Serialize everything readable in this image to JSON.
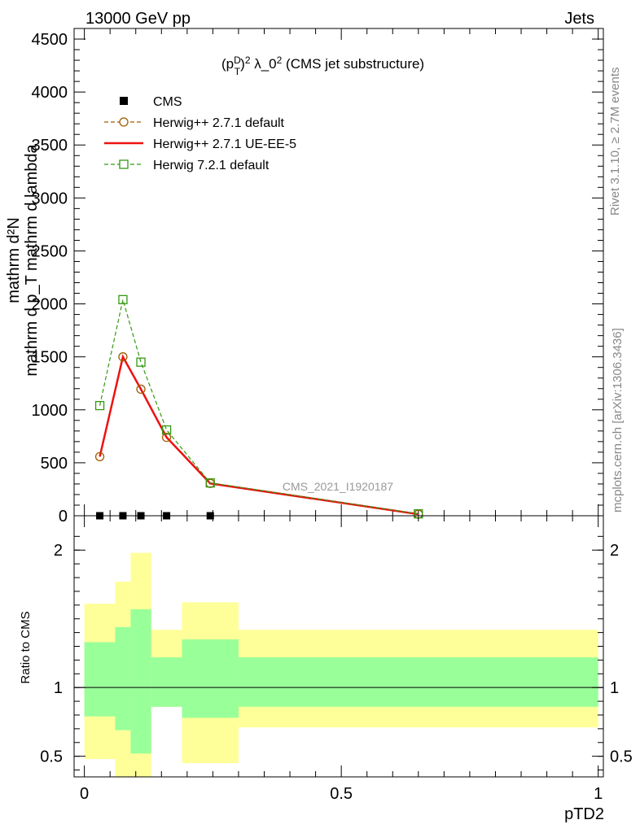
{
  "header": {
    "left": "13000 GeV pp",
    "right": "Jets"
  },
  "side_labels": {
    "rivet": "Rivet 3.1.10, ≥ 2.7M events",
    "mcplots": "mcplots.cern.ch [arXiv:1306.3436]"
  },
  "watermark": "CMS_2021_I1920187",
  "colors": {
    "cms": "#000000",
    "herwig_default": "#a05a00",
    "herwig_ueee5": "#ee1111",
    "herwig72": "#339911",
    "band_inner": "#99ff99",
    "band_outer": "#ffff99"
  },
  "chart_data": [
    {
      "type": "line",
      "title": "(p_T^D)^2 λ_0^2 (CMS jet substructure)",
      "xlabel": "",
      "ylabel": "mathrm d N / mathrm d p_T mathrm d lambda",
      "ylim": [
        0,
        4600
      ],
      "xlim": [
        -0.02,
        1.01
      ],
      "yticks": [
        0,
        500,
        1000,
        1500,
        2000,
        2500,
        3000,
        3500,
        4000,
        4500
      ],
      "ytick_labels": [
        "0",
        "500",
        "1000",
        "1500",
        "2000",
        "2500",
        "3000",
        "3500",
        "4000",
        "4500"
      ],
      "legend_position": "top-left",
      "series": [
        {
          "name": "CMS",
          "marker": "filled-square",
          "x": [
            0.03,
            0.075,
            0.11,
            0.16,
            0.245
          ],
          "y": [
            0,
            0,
            0,
            0,
            0
          ]
        },
        {
          "name": "Herwig++ 2.7.1 default",
          "marker": "open-circle",
          "style": "dashed",
          "x": [
            0.03,
            0.075,
            0.11,
            0.16,
            0.245,
            0.65
          ],
          "y": [
            558,
            1500,
            1195,
            740,
            305,
            15
          ]
        },
        {
          "name": "Herwig++ 2.7.1 UE-EE-5",
          "marker": "none",
          "style": "solid",
          "x": [
            0.03,
            0.075,
            0.11,
            0.16,
            0.245,
            0.65
          ],
          "y": [
            558,
            1500,
            1195,
            740,
            305,
            15
          ]
        },
        {
          "name": "Herwig 7.2.1 default",
          "marker": "open-square",
          "style": "dashed",
          "x": [
            0.03,
            0.075,
            0.11,
            0.16,
            0.245,
            0.65
          ],
          "y": [
            1040,
            2040,
            1450,
            810,
            310,
            18
          ]
        }
      ]
    },
    {
      "type": "area",
      "ylabel": "Ratio to CMS",
      "xlabel": "pTD2",
      "ylim": [
        0.35,
        2.25
      ],
      "xlim": [
        -0.02,
        1.01
      ],
      "yticks": [
        0.5,
        1,
        2
      ],
      "ytick_labels": [
        "0.5",
        "1",
        "2"
      ],
      "xticks": [
        0,
        0.5,
        1
      ],
      "xtick_labels": [
        "0",
        "0.5",
        "1"
      ],
      "reference": 1,
      "bins": [
        {
          "x0": 0.0,
          "x1": 0.06,
          "inner": [
            0.79,
            1.33
          ],
          "outer": [
            0.48,
            1.61
          ]
        },
        {
          "x0": 0.06,
          "x1": 0.09,
          "inner": [
            0.69,
            1.44
          ],
          "outer": [
            0.35,
            1.77
          ]
        },
        {
          "x0": 0.09,
          "x1": 0.13,
          "inner": [
            0.52,
            1.57
          ],
          "outer": [
            0.35,
            1.98
          ]
        },
        {
          "x0": 0.13,
          "x1": 0.19,
          "inner": [
            0.86,
            1.22
          ],
          "outer": [
            0.86,
            1.42
          ]
        },
        {
          "x0": 0.19,
          "x1": 0.3,
          "inner": [
            0.78,
            1.35
          ],
          "outer": [
            0.45,
            1.62
          ]
        },
        {
          "x0": 0.3,
          "x1": 1.0,
          "inner": [
            0.86,
            1.22
          ],
          "outer": [
            0.71,
            1.42
          ]
        }
      ]
    }
  ]
}
